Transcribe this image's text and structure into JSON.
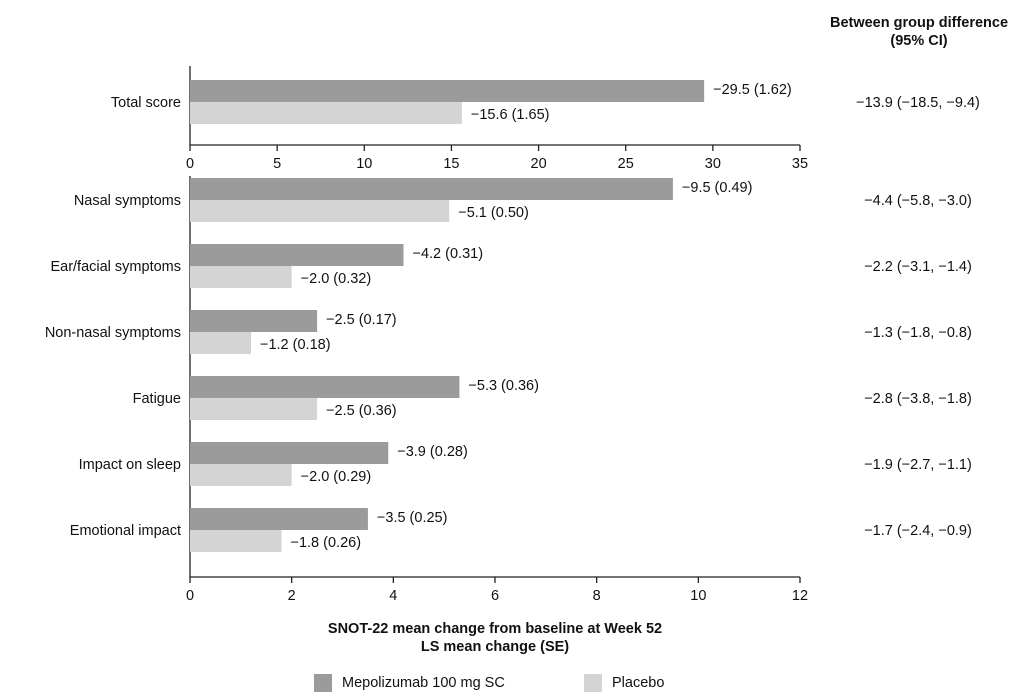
{
  "colors": {
    "drug": "#9b9b9b",
    "placebo": "#d4d4d4",
    "axis": "#222222"
  },
  "diff_header": {
    "line1": "Between group difference",
    "line2": "(95% CI)"
  },
  "xlabel": {
    "line1": "SNOT-22 mean change from baseline at Week 52",
    "line2": "LS mean change (SE)"
  },
  "legend": {
    "drug": "Mepolizumab 100 mg SC",
    "placebo": "Placebo"
  },
  "chart_data": [
    {
      "type": "bar",
      "orientation": "horizontal",
      "categories": [
        "Total score"
      ],
      "xlim": [
        0,
        35
      ],
      "xticks": [
        0,
        5,
        10,
        15,
        20,
        25,
        30,
        35
      ],
      "series": [
        {
          "name": "Mepolizumab 100 mg SC",
          "values": [
            29.5
          ],
          "labels": [
            "−29.5 (1.62)"
          ]
        },
        {
          "name": "Placebo",
          "values": [
            15.6
          ],
          "labels": [
            "−15.6 (1.65)"
          ]
        }
      ],
      "differences": [
        "−13.9 (−18.5, −9.4)"
      ]
    },
    {
      "type": "bar",
      "orientation": "horizontal",
      "categories": [
        "Nasal symptoms",
        "Ear/facial symptoms",
        "Non-nasal symptoms",
        "Fatigue",
        "Impact on sleep",
        "Emotional impact"
      ],
      "xlim": [
        0,
        12
      ],
      "xticks": [
        0,
        2,
        4,
        6,
        8,
        10,
        12
      ],
      "series": [
        {
          "name": "Mepolizumab 100 mg SC",
          "values": [
            9.5,
            4.2,
            2.5,
            5.3,
            3.9,
            3.5
          ],
          "labels": [
            "−9.5 (0.49)",
            "−4.2 (0.31)",
            "−2.5 (0.17)",
            "−5.3 (0.36)",
            "−3.9 (0.28)",
            "−3.5 (0.25)"
          ]
        },
        {
          "name": "Placebo",
          "values": [
            5.1,
            2.0,
            1.2,
            2.5,
            2.0,
            1.8
          ],
          "labels": [
            "−5.1 (0.50)",
            "−2.0 (0.32)",
            "−1.2 (0.18)",
            "−2.5 (0.36)",
            "−2.0 (0.29)",
            "−1.8 (0.26)"
          ]
        }
      ],
      "differences": [
        "−4.4 (−5.8, −3.0)",
        "−2.2 (−3.1, −1.4)",
        "−1.3 (−1.8, −0.8)",
        "−2.8 (−3.8, −1.8)",
        "−1.9 (−2.7, −1.1)",
        "−1.7 (−2.4, −0.9)"
      ]
    }
  ]
}
